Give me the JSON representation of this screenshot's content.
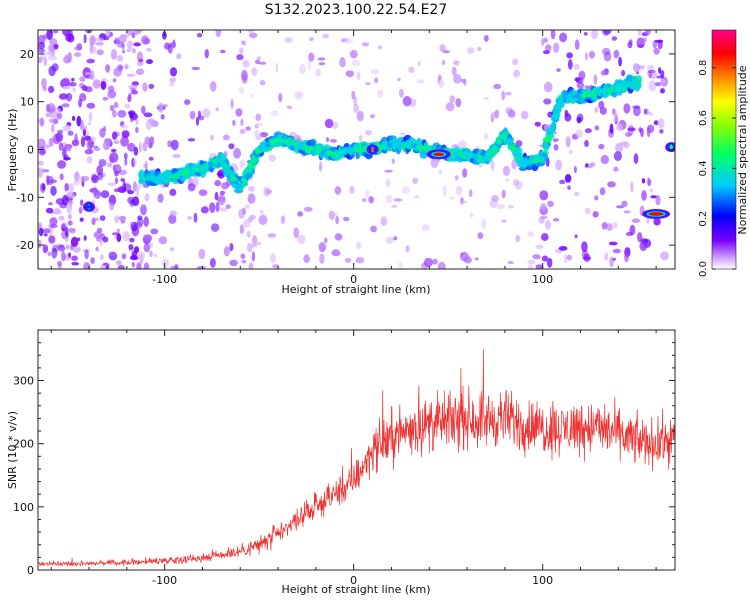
{
  "title": "S132.2023.100.22.54.E27",
  "chart_data": [
    {
      "type": "heatmap",
      "xlabel": "Height of straight line (km)",
      "ylabel": "Frequency (Hz)",
      "xlim": [
        -167,
        170
      ],
      "ylim": [
        -25,
        25
      ],
      "xticks": [
        -100,
        0,
        100
      ],
      "yticks": [
        -20,
        -10,
        0,
        10,
        20
      ],
      "colorbar": {
        "label": "Normalized spectral amplitude",
        "range": [
          0.0,
          0.95
        ],
        "ticks": [
          0.0,
          0.2,
          0.4,
          0.6,
          0.8
        ]
      },
      "ridge": {
        "x": [
          -110,
          -100,
          -90,
          -80,
          -70,
          -60,
          -50,
          -40,
          -30,
          -20,
          -10,
          0,
          10,
          20,
          30,
          40,
          50,
          60,
          70,
          80,
          90,
          100,
          110,
          120,
          130,
          140,
          150
        ],
        "y": [
          -6,
          -6,
          -5,
          -4,
          -2,
          -8,
          0,
          2,
          1,
          0,
          -1,
          0,
          0,
          1,
          1,
          0,
          -1,
          -1,
          -2,
          3,
          -3,
          -2,
          11,
          11,
          12,
          13,
          14
        ]
      },
      "strong_features": [
        {
          "x": 10,
          "y": 0,
          "amp": 0.85
        },
        {
          "x": 45,
          "y": -1,
          "amp": 0.9
        },
        {
          "x": 160,
          "y": -13.5,
          "amp": 0.9
        },
        {
          "x": 168,
          "y": 0.5,
          "amp": 0.5
        },
        {
          "x": -140,
          "y": -12,
          "amp": 0.25
        }
      ]
    },
    {
      "type": "line",
      "xlabel": "Height of straight line (km)",
      "ylabel": "SNR (10 * v/v)",
      "xlim": [
        -167,
        170
      ],
      "ylim": [
        0,
        380
      ],
      "xticks": [
        -100,
        0,
        100
      ],
      "yticks": [
        0,
        100,
        200,
        300
      ],
      "series": [
        {
          "color": "#ee3333",
          "x": [
            -167,
            -150,
            -120,
            -100,
            -80,
            -60,
            -50,
            -40,
            -30,
            -20,
            -10,
            -5,
            0,
            10,
            20,
            30,
            40,
            50,
            60,
            70,
            80,
            90,
            100,
            110,
            120,
            130,
            140,
            150,
            160,
            170
          ],
          "y": [
            10,
            10,
            12,
            15,
            20,
            30,
            40,
            55,
            80,
            100,
            120,
            130,
            140,
            190,
            210,
            225,
            230,
            235,
            240,
            238,
            240,
            230,
            225,
            222,
            228,
            225,
            215,
            205,
            200,
            210
          ]
        }
      ]
    }
  ]
}
